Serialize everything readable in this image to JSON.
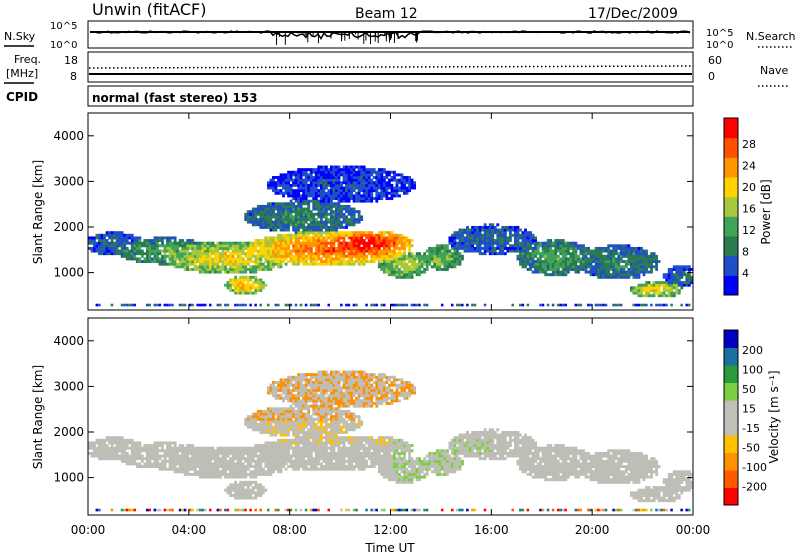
{
  "header": {
    "station": "Unwin (fitACF)",
    "beam": "Beam 12",
    "date": "17/Dec/2009"
  },
  "left_labels": {
    "nsky": "N.Sky",
    "freq": "Freq.",
    "freq_unit": "[MHz]",
    "cpid": "CPID"
  },
  "right_labels": {
    "nsearch": "N.Search",
    "nave": "Nave"
  },
  "cpid_text": "normal (fast stereo) 153",
  "colors": {
    "power_scale": [
      "#0000ff",
      "#1f4fc8",
      "#2b7a50",
      "#3fa35a",
      "#a5c83c",
      "#ffd200",
      "#ff9600",
      "#ff5000",
      "#ff0000"
    ],
    "velocity_scale": [
      "#ff0000",
      "#ff5a00",
      "#ff9000",
      "#ffc000",
      "#c0c0b8",
      "#c0c0b8",
      "#7ad040",
      "#2a9a3a",
      "#1a70a0",
      "#0000c0"
    ],
    "ground_scatter": "#bebeb6"
  },
  "chart_data": [
    {
      "type": "line",
      "name": "noise-panel",
      "left_ticks": [
        "10^5",
        "10^0"
      ],
      "right_ticks": [
        "10^5",
        "10^0"
      ],
      "series": [
        {
          "name": "N.Sky",
          "style": "solid"
        },
        {
          "name": "N.Search",
          "style": "dotted"
        }
      ]
    },
    {
      "type": "line",
      "name": "freq-nave-panel",
      "left_ticks": [
        "18",
        "8"
      ],
      "right_ticks": [
        "60",
        "0"
      ],
      "series": [
        {
          "name": "Freq.",
          "style": "solid"
        },
        {
          "name": "Nave",
          "style": "dotted"
        }
      ]
    },
    {
      "type": "heatmap",
      "name": "power-panel",
      "ylabel": "Slant Range [km]",
      "yticks": [
        "4000",
        "3000",
        "2000",
        "1000"
      ],
      "yvalues": [
        4000,
        3000,
        2000,
        1000
      ],
      "ylim": [
        180,
        4500
      ],
      "xlim": [
        0,
        24
      ],
      "colorbar_label": "Power [dB]",
      "colorbar_ticks": [
        "28",
        "24",
        "20",
        "16",
        "12",
        "8",
        "4"
      ],
      "blobs": [
        {
          "t": 9.5,
          "r": 1500,
          "st": 2.8,
          "sr": 320,
          "v": 22
        },
        {
          "t": 11.0,
          "r": 1600,
          "st": 1.6,
          "sr": 260,
          "v": 26
        },
        {
          "t": 5.5,
          "r": 1300,
          "st": 2.2,
          "sr": 300,
          "v": 16
        },
        {
          "t": 3.0,
          "r": 1450,
          "st": 1.6,
          "sr": 250,
          "v": 10
        },
        {
          "t": 1.0,
          "r": 1600,
          "st": 1.0,
          "sr": 220,
          "v": 6
        },
        {
          "t": 6.2,
          "r": 700,
          "st": 0.7,
          "sr": 180,
          "v": 18
        },
        {
          "t": 12.5,
          "r": 1150,
          "st": 0.9,
          "sr": 250,
          "v": 14
        },
        {
          "t": 14.0,
          "r": 1300,
          "st": 0.7,
          "sr": 230,
          "v": 12
        },
        {
          "t": 8.5,
          "r": 2200,
          "st": 2.0,
          "sr": 300,
          "v": 8
        },
        {
          "t": 16.0,
          "r": 1700,
          "st": 1.5,
          "sr": 280,
          "v": 6
        },
        {
          "t": 18.5,
          "r": 1300,
          "st": 1.3,
          "sr": 330,
          "v": 10
        },
        {
          "t": 22.5,
          "r": 600,
          "st": 0.9,
          "sr": 150,
          "v": 16
        },
        {
          "t": 21.0,
          "r": 1200,
          "st": 1.4,
          "sr": 320,
          "v": 8
        },
        {
          "t": 23.5,
          "r": 900,
          "st": 0.6,
          "sr": 200,
          "v": 6
        },
        {
          "t": 10.0,
          "r": 2900,
          "st": 2.5,
          "sr": 350,
          "v": 4
        }
      ]
    },
    {
      "type": "heatmap",
      "name": "velocity-panel",
      "ylabel": "Slant Range [km]",
      "yticks": [
        "4000",
        "3000",
        "2000",
        "1000"
      ],
      "yvalues": [
        4000,
        3000,
        2000,
        1000
      ],
      "ylim": [
        180,
        4500
      ],
      "xlim": [
        0,
        24
      ],
      "colorbar_label": "Velocity [m s⁻¹]",
      "colorbar_ticks": [
        "200",
        "100",
        "50",
        "15",
        "-15",
        "-50",
        "-100",
        "-200"
      ]
    }
  ],
  "x_axis": {
    "ticks": [
      "00:00",
      "04:00",
      "08:00",
      "12:00",
      "16:00",
      "20:00",
      "00:00"
    ],
    "label": "Time UT"
  }
}
